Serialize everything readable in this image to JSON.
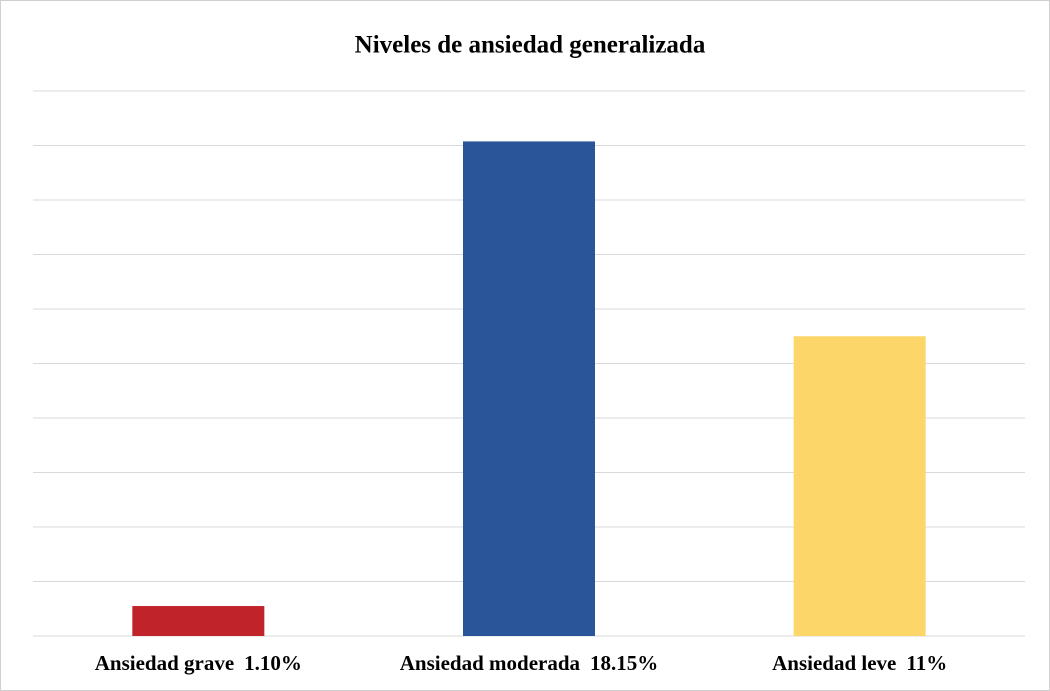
{
  "chart_data": {
    "type": "bar",
    "title": "Niveles de ansiedad generalizada",
    "categories": [
      "Ansiedad grave",
      "Ansiedad moderada",
      "Ansiedad leve"
    ],
    "values": [
      1.1,
      18.15,
      11
    ],
    "value_labels": [
      "1.10%",
      "18.15%",
      "11%"
    ],
    "colors": [
      "#c0232a",
      "#2a5599",
      "#fcd668"
    ],
    "ylim": [
      0,
      20
    ],
    "yticks": [
      0,
      2,
      4,
      6,
      8,
      10,
      12,
      14,
      16,
      18,
      20
    ],
    "grid": true
  }
}
